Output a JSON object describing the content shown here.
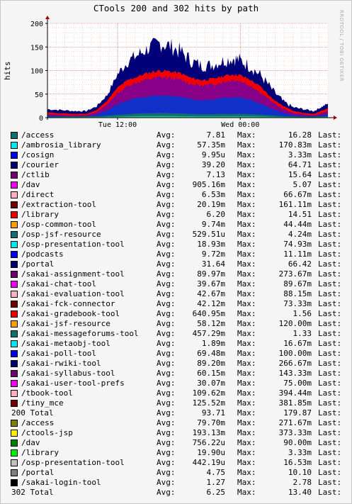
{
  "chart_data": {
    "type": "area",
    "title": "CTools 200 and 302 hits by path",
    "ylabel": "hits",
    "watermark": "RRDTOOL / TOBI OETIKER",
    "ylim": [
      0,
      200
    ],
    "y_ticks": [
      0,
      50,
      100,
      150,
      200
    ],
    "x_ticks": [
      "Tue 12:00",
      "Wed 00:00"
    ],
    "series_total_200_approx": [
      [
        0,
        18
      ],
      [
        4,
        16
      ],
      [
        8,
        14
      ],
      [
        11,
        14
      ],
      [
        14,
        24
      ],
      [
        17,
        48
      ],
      [
        20,
        92
      ],
      [
        23,
        120
      ],
      [
        26,
        134
      ],
      [
        29,
        148
      ],
      [
        32,
        158
      ],
      [
        35,
        152
      ],
      [
        38,
        140
      ],
      [
        41,
        120
      ],
      [
        44,
        110
      ],
      [
        47,
        112
      ],
      [
        50,
        120
      ],
      [
        53,
        126
      ],
      [
        55,
        122
      ],
      [
        58,
        108
      ],
      [
        61,
        88
      ],
      [
        64,
        60
      ],
      [
        67,
        36
      ],
      [
        70,
        22
      ],
      [
        73,
        18
      ],
      [
        76,
        14
      ],
      [
        78,
        22
      ],
      [
        80,
        30
      ]
    ],
    "series_red_approx": [
      [
        0,
        11
      ],
      [
        8,
        8
      ],
      [
        11,
        8
      ],
      [
        14,
        16
      ],
      [
        17,
        36
      ],
      [
        20,
        64
      ],
      [
        23,
        80
      ],
      [
        26,
        88
      ],
      [
        29,
        96
      ],
      [
        32,
        100
      ],
      [
        35,
        98
      ],
      [
        38,
        94
      ],
      [
        41,
        84
      ],
      [
        44,
        80
      ],
      [
        47,
        82
      ],
      [
        50,
        88
      ],
      [
        53,
        92
      ],
      [
        55,
        90
      ],
      [
        58,
        80
      ],
      [
        61,
        64
      ],
      [
        64,
        42
      ],
      [
        67,
        26
      ],
      [
        70,
        15
      ],
      [
        73,
        10
      ],
      [
        76,
        8
      ],
      [
        78,
        14
      ],
      [
        80,
        20
      ]
    ],
    "series_purple_approx": [
      [
        0,
        7
      ],
      [
        8,
        5
      ],
      [
        11,
        5
      ],
      [
        14,
        12
      ],
      [
        17,
        28
      ],
      [
        20,
        52
      ],
      [
        23,
        68
      ],
      [
        26,
        76
      ],
      [
        29,
        82
      ],
      [
        32,
        86
      ],
      [
        35,
        84
      ],
      [
        38,
        80
      ],
      [
        41,
        72
      ],
      [
        44,
        68
      ],
      [
        47,
        70
      ],
      [
        50,
        76
      ],
      [
        53,
        80
      ],
      [
        55,
        78
      ],
      [
        58,
        68
      ],
      [
        61,
        52
      ],
      [
        64,
        34
      ],
      [
        67,
        20
      ],
      [
        70,
        10
      ],
      [
        73,
        7
      ],
      [
        76,
        5
      ],
      [
        78,
        9
      ],
      [
        80,
        14
      ]
    ],
    "series_teal_approx": [
      [
        0,
        2
      ],
      [
        14,
        3
      ],
      [
        20,
        6
      ],
      [
        26,
        9
      ],
      [
        32,
        10
      ],
      [
        38,
        9
      ],
      [
        44,
        7
      ],
      [
        50,
        8
      ],
      [
        56,
        8
      ],
      [
        62,
        6
      ],
      [
        68,
        3
      ],
      [
        74,
        2
      ],
      [
        80,
        3
      ]
    ],
    "x_range": [
      0,
      80
    ],
    "x_tick_positions": [
      20,
      55
    ],
    "legend": [
      {
        "color": "#0e7070",
        "name": "/access",
        "avg": "7.81",
        "max": "16.28"
      },
      {
        "color": "#00e8f0",
        "name": "/ambrosia_library",
        "avg": "57.35m",
        "max": "170.83m"
      },
      {
        "color": "#0000e8",
        "name": "/cosign",
        "avg": "9.95u",
        "max": "3.33m"
      },
      {
        "color": "#000070",
        "name": "/courier",
        "avg": "39.20",
        "max": "64.71"
      },
      {
        "color": "#700070",
        "name": "/ctlib",
        "avg": "7.13",
        "max": "15.64"
      },
      {
        "color": "#f000f0",
        "name": "/dav",
        "avg": "905.16m",
        "max": "5.07"
      },
      {
        "color": "#ffb0c0",
        "name": "/direct",
        "avg": "6.53m",
        "max": "66.67m"
      },
      {
        "color": "#700000",
        "name": "/extraction-tool",
        "avg": "20.19m",
        "max": "161.11m"
      },
      {
        "color": "#f00000",
        "name": "/library",
        "avg": "6.20",
        "max": "14.51"
      },
      {
        "color": "#f8a000",
        "name": "/osp-common-tool",
        "avg": "9.74m",
        "max": "44.44m"
      },
      {
        "color": "#0e7070",
        "name": "/osp-jsf-resource",
        "avg": "529.51u",
        "max": "4.24m"
      },
      {
        "color": "#00e8f0",
        "name": "/osp-presentation-tool",
        "avg": "18.93m",
        "max": "74.93m"
      },
      {
        "color": "#0000e8",
        "name": "/podcasts",
        "avg": "9.72m",
        "max": "11.11m"
      },
      {
        "color": "#000070",
        "name": "/portal",
        "avg": "31.64",
        "max": "66.42"
      },
      {
        "color": "#700070",
        "name": "/sakai-assignment-tool",
        "avg": "89.97m",
        "max": "273.67m"
      },
      {
        "color": "#f000f0",
        "name": "/sakai-chat-tool",
        "avg": "39.67m",
        "max": "89.67m"
      },
      {
        "color": "#ffb0c0",
        "name": "/sakai-evaluation-tool",
        "avg": "42.67m",
        "max": "88.15m"
      },
      {
        "color": "#700000",
        "name": "/sakai-fck-connector",
        "avg": "42.12m",
        "max": "73.33m"
      },
      {
        "color": "#f00000",
        "name": "/sakai-gradebook-tool",
        "avg": "640.95m",
        "max": "1.56"
      },
      {
        "color": "#f8a000",
        "name": "/sakai-jsf-resource",
        "avg": "58.12m",
        "max": "120.00m"
      },
      {
        "color": "#0e7070",
        "name": "/sakai-messageforums-tool",
        "avg": "457.29m",
        "max": "1.33"
      },
      {
        "color": "#00e8f0",
        "name": "/sakai-metaobj-tool",
        "avg": "1.89m",
        "max": "16.67m"
      },
      {
        "color": "#0000e8",
        "name": "/sakai-poll-tool",
        "avg": "69.48m",
        "max": "100.00m"
      },
      {
        "color": "#000070",
        "name": "/sakai-rwiki-tool",
        "avg": "89.20m",
        "max": "266.67m"
      },
      {
        "color": "#700070",
        "name": "/sakai-syllabus-tool",
        "avg": "60.15m",
        "max": "143.33m"
      },
      {
        "color": "#f000f0",
        "name": "/sakai-user-tool-prefs",
        "avg": "30.07m",
        "max": "75.00m"
      },
      {
        "color": "#ffb0c0",
        "name": "/tbook-tool",
        "avg": "109.62m",
        "max": "394.44m"
      },
      {
        "color": "#700000",
        "name": "/tiny_mce",
        "avg": "125.52m",
        "max": "381.85m"
      },
      {
        "color": "",
        "name": "200 Total",
        "avg": "93.71",
        "max": "179.87"
      },
      {
        "color": "#808000",
        "name": "/access",
        "avg": "79.70m",
        "max": "271.67m"
      },
      {
        "color": "#f8f000",
        "name": "/ctools-jsp",
        "avg": "193.13m",
        "max": "373.33m"
      },
      {
        "color": "#008000",
        "name": "/dav",
        "avg": "756.22u",
        "max": "90.00m"
      },
      {
        "color": "#00f000",
        "name": "/library",
        "avg": "19.90u",
        "max": "3.33m"
      },
      {
        "color": "#c0c0c0",
        "name": "/osp-presentation-tool",
        "avg": "442.19u",
        "max": "16.53m"
      },
      {
        "color": "#808080",
        "name": "/portal",
        "avg": "4.75",
        "max": "10.10"
      },
      {
        "color": "#000000",
        "name": "/sakai-login-tool",
        "avg": "1.27",
        "max": "2.78"
      },
      {
        "color": "",
        "name": "302 Total",
        "avg": "6.25",
        "max": "13.40"
      }
    ],
    "legend_labels": {
      "avg": "Avg:",
      "max": "Max:",
      "last": "Last:"
    }
  }
}
